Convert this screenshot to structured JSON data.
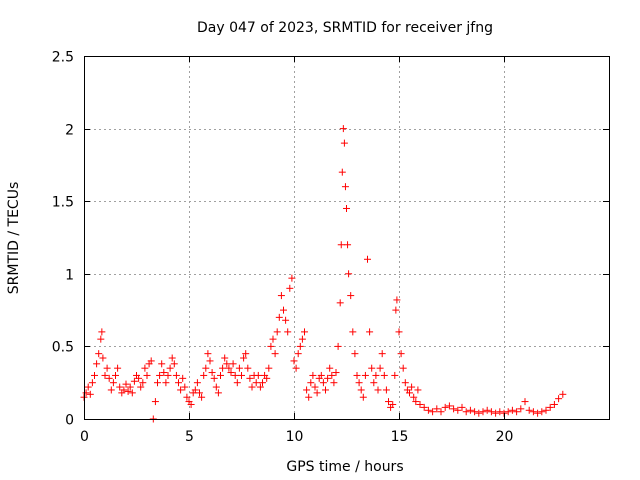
{
  "chart_data": {
    "type": "scatter",
    "title": "Day 047 of 2023, SRMTID for receiver jfng",
    "xlabel": "GPS time / hours",
    "ylabel": "SRMTID / TECUs",
    "xlim": [
      0,
      25
    ],
    "ylim": [
      0,
      2.5
    ],
    "x_ticks": [
      0,
      5,
      10,
      15,
      20
    ],
    "x_tick_labels": [
      "0",
      "5",
      "10",
      "15",
      "20"
    ],
    "y_ticks": [
      0,
      0.5,
      1,
      1.5,
      2,
      2.5
    ],
    "y_tick_labels": [
      "0",
      "0.5",
      "1",
      "1.5",
      "2",
      "2.5"
    ],
    "grid": true,
    "marker": "+",
    "series": [
      {
        "name": "SRMTID",
        "color": "#ff0000",
        "x": [
          0.0,
          0.1,
          0.2,
          0.3,
          0.4,
          0.5,
          0.6,
          0.7,
          0.8,
          0.85,
          0.9,
          1.0,
          1.1,
          1.2,
          1.3,
          1.4,
          1.5,
          1.6,
          1.7,
          1.8,
          1.9,
          2.0,
          2.1,
          2.2,
          2.3,
          2.4,
          2.5,
          2.6,
          2.7,
          2.8,
          2.9,
          3.0,
          3.1,
          3.2,
          3.3,
          3.4,
          3.5,
          3.6,
          3.7,
          3.8,
          3.9,
          4.0,
          4.1,
          4.2,
          4.3,
          4.4,
          4.5,
          4.6,
          4.7,
          4.8,
          4.9,
          5.0,
          5.1,
          5.2,
          5.3,
          5.4,
          5.5,
          5.6,
          5.7,
          5.8,
          5.9,
          6.0,
          6.1,
          6.2,
          6.3,
          6.4,
          6.5,
          6.6,
          6.7,
          6.8,
          6.9,
          7.0,
          7.1,
          7.2,
          7.3,
          7.4,
          7.5,
          7.6,
          7.7,
          7.8,
          7.9,
          8.0,
          8.1,
          8.2,
          8.3,
          8.4,
          8.5,
          8.6,
          8.7,
          8.8,
          8.9,
          9.0,
          9.1,
          9.2,
          9.3,
          9.4,
          9.5,
          9.6,
          9.7,
          9.8,
          9.9,
          10.0,
          10.1,
          10.2,
          10.3,
          10.4,
          10.5,
          10.6,
          10.7,
          10.8,
          10.9,
          11.0,
          11.1,
          11.2,
          11.3,
          11.4,
          11.5,
          11.6,
          11.7,
          11.8,
          11.9,
          12.0,
          12.1,
          12.2,
          12.25,
          12.3,
          12.35,
          12.4,
          12.45,
          12.5,
          12.55,
          12.6,
          12.7,
          12.8,
          12.9,
          13.0,
          13.1,
          13.2,
          13.3,
          13.4,
          13.5,
          13.6,
          13.7,
          13.8,
          13.9,
          14.0,
          14.1,
          14.2,
          14.3,
          14.4,
          14.5,
          14.6,
          14.7,
          14.8,
          14.85,
          14.9,
          15.0,
          15.1,
          15.2,
          15.3,
          15.4,
          15.5,
          15.6,
          15.7,
          15.8,
          15.9,
          16.0,
          16.2,
          16.4,
          16.6,
          16.8,
          17.0,
          17.2,
          17.4,
          17.6,
          17.8,
          18.0,
          18.2,
          18.4,
          18.6,
          18.8,
          19.0,
          19.2,
          19.4,
          19.6,
          19.8,
          20.0,
          20.2,
          20.4,
          20.6,
          20.8,
          21.0,
          21.2,
          21.4,
          21.6,
          21.8,
          22.0,
          22.2,
          22.4,
          22.6,
          22.8
        ],
        "y": [
          0.15,
          0.18,
          0.22,
          0.17,
          0.25,
          0.3,
          0.38,
          0.45,
          0.55,
          0.6,
          0.42,
          0.3,
          0.35,
          0.28,
          0.2,
          0.25,
          0.3,
          0.35,
          0.22,
          0.18,
          0.2,
          0.24,
          0.19,
          0.22,
          0.18,
          0.26,
          0.3,
          0.28,
          0.22,
          0.25,
          0.35,
          0.3,
          0.38,
          0.4,
          0.0,
          0.12,
          0.25,
          0.3,
          0.38,
          0.32,
          0.25,
          0.3,
          0.35,
          0.42,
          0.38,
          0.3,
          0.25,
          0.2,
          0.28,
          0.22,
          0.15,
          0.12,
          0.1,
          0.18,
          0.2,
          0.25,
          0.18,
          0.15,
          0.3,
          0.35,
          0.45,
          0.4,
          0.32,
          0.28,
          0.22,
          0.18,
          0.3,
          0.35,
          0.42,
          0.38,
          0.35,
          0.32,
          0.38,
          0.3,
          0.25,
          0.35,
          0.3,
          0.42,
          0.45,
          0.35,
          0.28,
          0.22,
          0.3,
          0.25,
          0.3,
          0.22,
          0.25,
          0.3,
          0.28,
          0.35,
          0.5,
          0.55,
          0.45,
          0.6,
          0.7,
          0.85,
          0.75,
          0.68,
          0.6,
          0.9,
          0.97,
          0.4,
          0.35,
          0.45,
          0.5,
          0.55,
          0.6,
          0.2,
          0.15,
          0.25,
          0.3,
          0.22,
          0.18,
          0.28,
          0.3,
          0.25,
          0.2,
          0.28,
          0.35,
          0.3,
          0.25,
          0.32,
          0.5,
          0.8,
          1.2,
          1.7,
          2.0,
          1.9,
          1.6,
          1.45,
          1.2,
          1.0,
          0.85,
          0.6,
          0.45,
          0.3,
          0.25,
          0.2,
          0.15,
          0.3,
          1.1,
          0.6,
          0.35,
          0.25,
          0.3,
          0.2,
          0.35,
          0.45,
          0.3,
          0.2,
          0.12,
          0.08,
          0.1,
          0.3,
          0.75,
          0.82,
          0.6,
          0.45,
          0.35,
          0.25,
          0.2,
          0.18,
          0.22,
          0.15,
          0.12,
          0.2,
          0.1,
          0.08,
          0.06,
          0.05,
          0.07,
          0.05,
          0.08,
          0.09,
          0.07,
          0.06,
          0.08,
          0.05,
          0.06,
          0.05,
          0.04,
          0.05,
          0.06,
          0.05,
          0.04,
          0.05,
          0.04,
          0.05,
          0.06,
          0.05,
          0.07,
          0.12,
          0.06,
          0.05,
          0.04,
          0.05,
          0.06,
          0.08,
          0.1,
          0.14,
          0.17
        ]
      }
    ]
  }
}
